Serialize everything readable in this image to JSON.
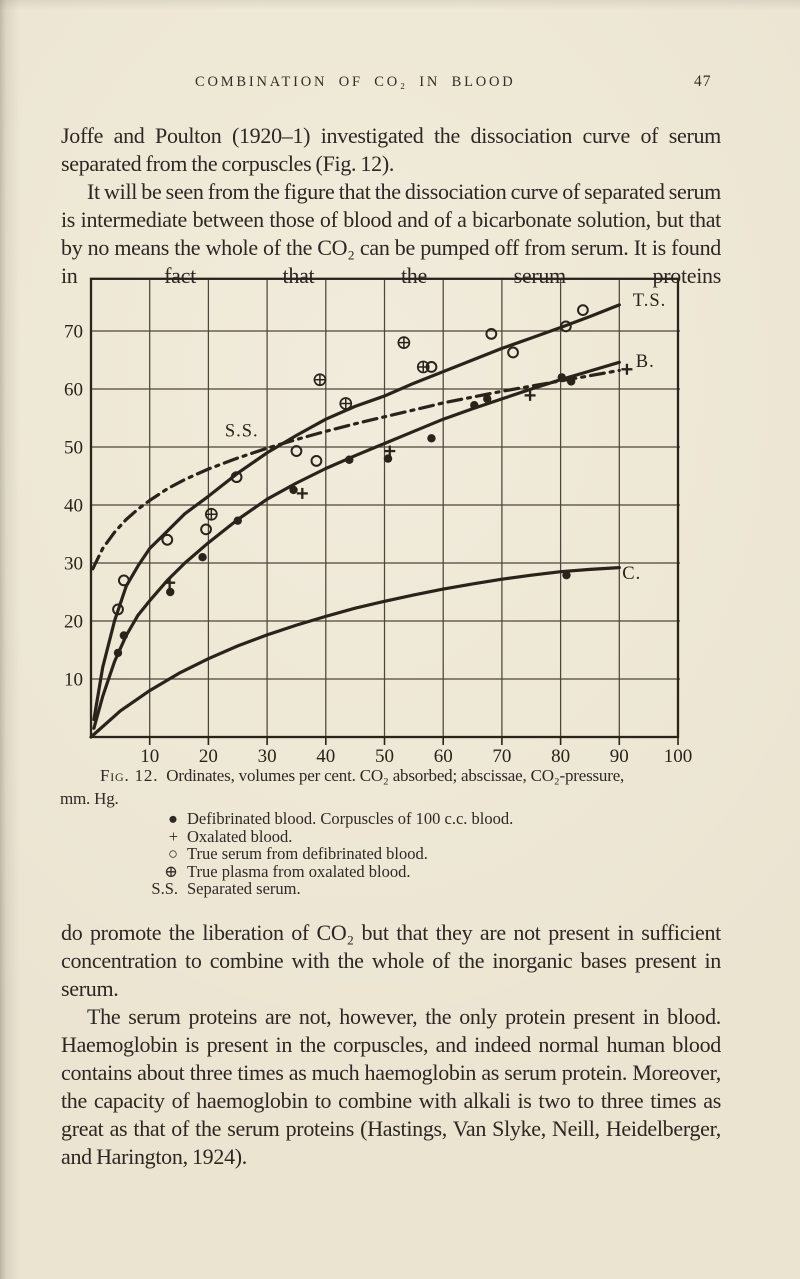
{
  "page": {
    "header": {
      "title": "COMBINATION OF CO₂ IN BLOOD",
      "page_number": "47"
    },
    "paragraphs": {
      "p1": "Joffe and Poulton (1920–1) investigated the dissociation curve of serum separated from the corpuscles (Fig. 12).",
      "p2": "It will be seen from the figure that the dissociation curve of separated serum is intermediate between those of blood and of a bicarbonate solution, but that by no means the whole of the CO₂ can be pumped off from serum. It is found in fact that the serum proteins",
      "p3": "do promote the liberation of CO₂ but that they are not present in sufficient concentration to combine with the whole of the inorganic bases present in serum.",
      "p4": "The serum proteins are not, however, the only protein present in blood. Haemoglobin is present in the corpuscles, and indeed normal human blood contains about three times as much haemoglobin as serum protein. Moreover, the capacity of haemoglobin to combine with alkali is two to three times as great as that of the serum proteins (Hastings, Van Slyke, Neill, Heidelberger, and Harington, 1924)."
    },
    "figure": {
      "caption_label": "Fig. 12.",
      "caption_line1": "Ordinates, volumes per cent. CO₂ absorbed; abscissae, CO₂-pressure,",
      "caption_line2": "mm. Hg.",
      "legend": [
        {
          "symbol": "●",
          "text": "Defibrinated blood. Corpuscles of 100 c.c. blood."
        },
        {
          "symbol": "+",
          "text": "Oxalated blood."
        },
        {
          "symbol": "○",
          "text": "True serum from defibrinated blood."
        },
        {
          "symbol": "⊕",
          "text": "True plasma from oxalated blood."
        },
        {
          "symbol": "S.S.",
          "text": "Separated serum."
        }
      ]
    }
  },
  "chart_data": {
    "type": "line",
    "title": "Fig. 12",
    "xlabel": "CO₂-pressure, mm. Hg",
    "ylabel": "volumes per cent. CO₂ absorbed",
    "xlim": [
      0,
      100
    ],
    "ylim": [
      0,
      79
    ],
    "x_ticks": [
      10,
      20,
      30,
      40,
      50,
      60,
      70,
      80,
      90,
      100
    ],
    "y_ticks": [
      10,
      20,
      30,
      40,
      50,
      60,
      70
    ],
    "grid": true,
    "legend_position": "on-curve-labels",
    "ink_color": "#29231a",
    "grid_color": "#4d463a",
    "series": [
      {
        "name": "true-serum-curve",
        "label": "T.S.",
        "style": "solid",
        "label_pos": [
          92.3,
          74.3
        ],
        "points": [
          [
            0.5,
            3
          ],
          [
            2,
            12
          ],
          [
            4,
            20
          ],
          [
            6,
            26
          ],
          [
            8,
            29.5
          ],
          [
            10,
            32.5
          ],
          [
            13,
            35.5
          ],
          [
            16,
            38.5
          ],
          [
            20,
            41.5
          ],
          [
            25,
            45.5
          ],
          [
            30,
            49
          ],
          [
            35,
            52
          ],
          [
            40,
            54.8
          ],
          [
            45,
            57
          ],
          [
            50,
            58.8
          ],
          [
            55,
            61
          ],
          [
            60,
            63
          ],
          [
            65,
            65
          ],
          [
            70,
            67
          ],
          [
            75,
            68.8
          ],
          [
            80,
            70.6
          ],
          [
            85,
            72.5
          ],
          [
            90,
            74.5
          ]
        ]
      },
      {
        "name": "blood-curve",
        "label": "B.",
        "style": "solid",
        "label_pos": [
          92.8,
          63.8
        ],
        "points": [
          [
            0.5,
            1.5
          ],
          [
            2,
            7
          ],
          [
            4,
            13
          ],
          [
            6,
            17.5
          ],
          [
            8,
            21
          ],
          [
            10,
            23.5
          ],
          [
            13,
            27
          ],
          [
            16,
            30
          ],
          [
            20,
            33.5
          ],
          [
            25,
            37.5
          ],
          [
            30,
            41
          ],
          [
            35,
            43.8
          ],
          [
            40,
            46.3
          ],
          [
            45,
            48.5
          ],
          [
            50,
            50.6
          ],
          [
            55,
            52.7
          ],
          [
            60,
            54.8
          ],
          [
            65,
            56.6
          ],
          [
            70,
            58.3
          ],
          [
            75,
            60
          ],
          [
            80,
            61.6
          ],
          [
            85,
            63.1
          ],
          [
            90,
            64.6
          ]
        ]
      },
      {
        "name": "separated-serum-curve",
        "label": "S.S.",
        "style": "dashdot",
        "label_pos": [
          22.8,
          51.8
        ],
        "points": [
          [
            0.3,
            29
          ],
          [
            2,
            32.5
          ],
          [
            4,
            35.3
          ],
          [
            6,
            37.5
          ],
          [
            8,
            39.3
          ],
          [
            10,
            40.8
          ],
          [
            13,
            42.8
          ],
          [
            16,
            44.4
          ],
          [
            20,
            46.2
          ],
          [
            25,
            48.1
          ],
          [
            30,
            49.8
          ],
          [
            35,
            51.3
          ],
          [
            40,
            52.7
          ],
          [
            45,
            54
          ],
          [
            50,
            55.2
          ],
          [
            55,
            56.4
          ],
          [
            60,
            57.6
          ],
          [
            65,
            58.6
          ],
          [
            70,
            59.6
          ],
          [
            75,
            60.5
          ],
          [
            80,
            61.4
          ],
          [
            85,
            62.3
          ],
          [
            90,
            63.2
          ]
        ]
      },
      {
        "name": "bicarbonate-curve",
        "label": "C.",
        "style": "solid",
        "label_pos": [
          90.5,
          27.2
        ],
        "points": [
          [
            0,
            0
          ],
          [
            5,
            4.5
          ],
          [
            10,
            8
          ],
          [
            15,
            11
          ],
          [
            20,
            13.5
          ],
          [
            25,
            15.7
          ],
          [
            30,
            17.6
          ],
          [
            35,
            19.3
          ],
          [
            40,
            20.8
          ],
          [
            45,
            22.2
          ],
          [
            50,
            23.4
          ],
          [
            55,
            24.5
          ],
          [
            60,
            25.5
          ],
          [
            65,
            26.4
          ],
          [
            70,
            27.2
          ],
          [
            75,
            27.9
          ],
          [
            80,
            28.5
          ],
          [
            85,
            28.9
          ],
          [
            90,
            29.2
          ]
        ]
      }
    ],
    "scatter": [
      {
        "name": "defibrinated-blood",
        "marker": "filled-circle",
        "points": [
          [
            4.6,
            14.5
          ],
          [
            5.6,
            17.5
          ],
          [
            13.5,
            25
          ],
          [
            19,
            31
          ],
          [
            25,
            37.3
          ],
          [
            34.5,
            42.6
          ],
          [
            44,
            47.8
          ],
          [
            50.6,
            48
          ],
          [
            58,
            51.5
          ],
          [
            65.3,
            57.2
          ],
          [
            67.5,
            58.3
          ],
          [
            80.2,
            62
          ],
          [
            81.8,
            61.3
          ],
          [
            81,
            27.9
          ]
        ]
      },
      {
        "name": "oxalated-blood",
        "marker": "plus",
        "points": [
          [
            13.4,
            26.6
          ],
          [
            36,
            42
          ],
          [
            50.9,
            49.3
          ],
          [
            74.8,
            58.9
          ],
          [
            91.3,
            63.4
          ]
        ]
      },
      {
        "name": "true-serum",
        "marker": "open-circle",
        "points": [
          [
            4.6,
            22
          ],
          [
            5.6,
            27
          ],
          [
            13,
            34
          ],
          [
            19.6,
            35.8
          ],
          [
            24.8,
            44.8
          ],
          [
            35,
            49.3
          ],
          [
            38.4,
            47.6
          ],
          [
            58,
            63.8
          ],
          [
            68.2,
            69.5
          ],
          [
            71.9,
            66.3
          ],
          [
            80.9,
            70.8
          ],
          [
            83.8,
            73.6
          ]
        ]
      },
      {
        "name": "true-plasma",
        "marker": "circled-plus",
        "points": [
          [
            20.5,
            38.4
          ],
          [
            39,
            61.6
          ],
          [
            43.4,
            57.5
          ],
          [
            53.3,
            68
          ],
          [
            56.6,
            63.8
          ]
        ]
      }
    ]
  }
}
